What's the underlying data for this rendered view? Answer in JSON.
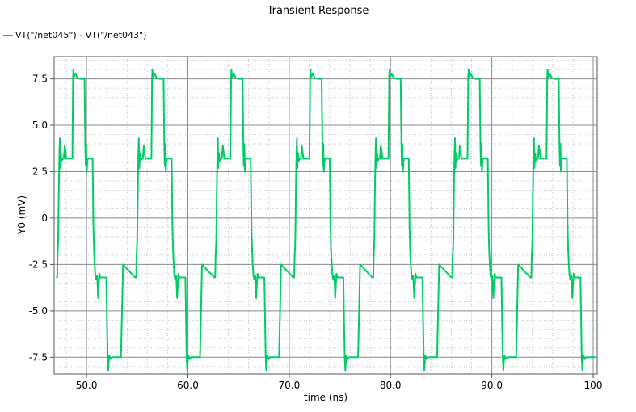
{
  "chart_data": {
    "type": "line",
    "title": "Transient Response",
    "xlabel": "time (ns)",
    "ylabel": "Y0 (mV)",
    "xlim": [
      46.8,
      100.4
    ],
    "ylim": [
      -8.4,
      8.7
    ],
    "xticks": [
      50.0,
      60.0,
      70.0,
      80.0,
      90.0,
      100
    ],
    "xtick_labels": [
      "50.0",
      "60.0",
      "70.0",
      "80.0",
      "90.0",
      "100"
    ],
    "yticks": [
      -7.5,
      -5.0,
      -2.5,
      0,
      2.5,
      5.0,
      7.5
    ],
    "ytick_labels": [
      "-7.5",
      "-5.0",
      "-2.5",
      "0",
      "2.5",
      "5.0",
      "7.5"
    ],
    "grid": true,
    "legend_position": "top-left",
    "series": [
      {
        "name": "VT(\"/net045\") - VT(\"/net043\")",
        "color": "#00cc66",
        "period_ns": 7.8,
        "x": [
          47.0,
          47.1,
          47.13,
          47.2,
          47.23,
          47.26,
          47.31,
          47.36,
          47.41,
          47.47,
          47.52,
          47.57,
          47.64,
          47.75,
          47.85,
          47.92,
          48.0,
          48.2,
          48.6,
          48.67,
          48.7,
          48.77,
          48.92,
          49.1,
          49.4,
          49.8,
          49.88,
          49.92,
          49.97,
          50.02,
          50.07,
          50.11,
          50.3,
          50.6,
          50.68,
          50.73,
          50.8,
          50.87,
          50.95,
          51.05,
          51.14,
          51.27,
          51.35,
          51.55,
          51.75,
          51.95,
          52.03,
          52.08,
          52.14,
          52.23,
          52.36,
          52.5,
          52.6,
          52.9,
          53.4,
          53.6
        ],
        "y": [
          -3.2,
          -3.2,
          -2.2,
          -1.2,
          0.2,
          1.5,
          3.3,
          4.3,
          2.7,
          3.5,
          3.2,
          3.1,
          3.2,
          3.2,
          3.9,
          3.6,
          3.2,
          3.2,
          3.2,
          7.6,
          8.0,
          7.6,
          7.8,
          7.55,
          7.5,
          7.5,
          3.7,
          2.8,
          4.0,
          2.5,
          3.0,
          3.2,
          3.2,
          3.2,
          -0.5,
          -1.6,
          -2.5,
          -3.1,
          -3.3,
          -3.1,
          -4.3,
          -3.0,
          -3.2,
          -3.2,
          -3.2,
          -3.2,
          -6.0,
          -7.6,
          -8.2,
          -7.4,
          -7.6,
          -7.5,
          -7.5,
          -7.5,
          -7.5,
          -2.5
        ]
      }
    ]
  }
}
